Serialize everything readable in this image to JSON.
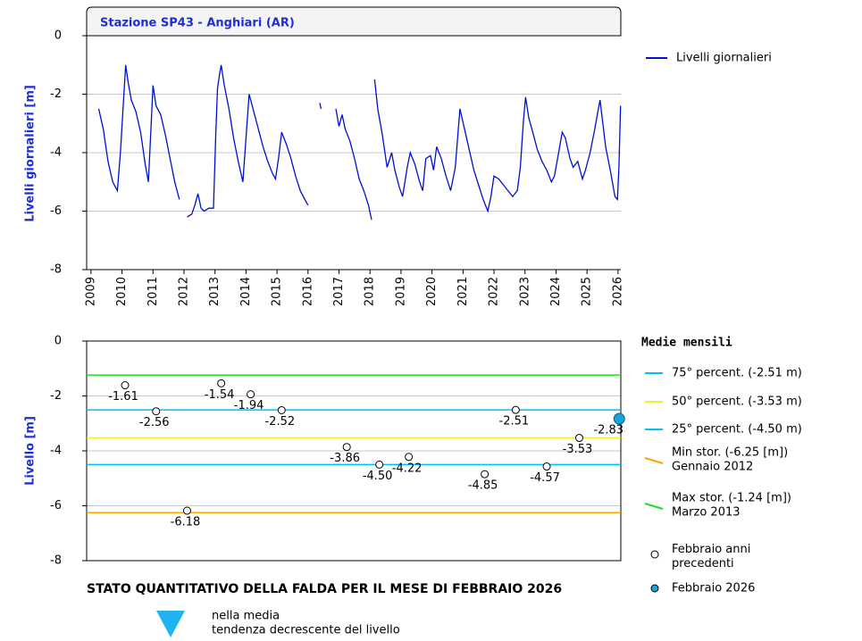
{
  "chart_data": [
    {
      "type": "line",
      "title": "Stazione SP43 - Anghiari (AR)",
      "ylabel": "Livelli giornalieri [m]",
      "xlim": [
        2008.86,
        2026.09
      ],
      "xticks": [
        2009,
        2010,
        2011,
        2012,
        2013,
        2014,
        2015,
        2016,
        2017,
        2018,
        2019,
        2020,
        2021,
        2022,
        2023,
        2024,
        2025,
        2026
      ],
      "ylim": [
        -8,
        0
      ],
      "yticks": [
        0,
        -2,
        -4,
        -6,
        -8
      ],
      "grid": true,
      "series": [
        {
          "name": "Livelli giornalieri",
          "color": "#0010d0",
          "x": [
            2009.25,
            2009.4,
            2009.55,
            2009.7,
            2009.85,
            2009.95,
            2010.05,
            2010.12,
            2010.2,
            2010.3,
            2010.45,
            2010.6,
            2010.75,
            2010.85,
            2010.92,
            2011.0,
            2011.1,
            2011.25,
            2011.4,
            2011.55,
            2011.7,
            2011.85,
            2011.95,
            2012.1,
            2012.25,
            2012.35,
            2012.45,
            2012.55,
            2012.65,
            2012.8,
            2012.95,
            2013.02,
            2013.08,
            2013.15,
            2013.2,
            2013.3,
            2013.45,
            2013.6,
            2013.75,
            2013.9,
            2014.0,
            2014.1,
            2014.25,
            2014.4,
            2014.55,
            2014.7,
            2014.85,
            2014.95,
            2015.05,
            2015.15,
            2015.3,
            2015.45,
            2015.6,
            2015.75,
            2015.9,
            2016.0,
            2016.2,
            2016.38,
            2016.42,
            2016.6,
            2016.9,
            2017.0,
            2017.1,
            2017.2,
            2017.35,
            2017.5,
            2017.65,
            2017.8,
            2017.95,
            2018.05,
            2018.1,
            2018.15,
            2018.25,
            2018.4,
            2018.55,
            2018.7,
            2018.8,
            2018.95,
            2019.05,
            2019.2,
            2019.3,
            2019.45,
            2019.6,
            2019.7,
            2019.8,
            2019.95,
            2020.05,
            2020.15,
            2020.3,
            2020.45,
            2020.6,
            2020.75,
            2020.9,
            2021.05,
            2021.2,
            2021.35,
            2021.5,
            2021.65,
            2021.8,
            2021.9,
            2022.0,
            2022.15,
            2022.3,
            2022.45,
            2022.6,
            2022.75,
            2022.85,
            2022.95,
            2023.02,
            2023.12,
            2023.25,
            2023.4,
            2023.55,
            2023.7,
            2023.85,
            2023.95,
            2024.05,
            2024.2,
            2024.3,
            2024.45,
            2024.55,
            2024.7,
            2024.85,
            2024.95,
            2025.1,
            2025.25,
            2025.35,
            2025.42,
            2025.5,
            2025.6,
            2025.75,
            2025.9,
            2025.98,
            2026.03,
            2026.08
          ],
          "values": [
            -2.5,
            -3.2,
            -4.3,
            -5.0,
            -5.3,
            -4.0,
            -2.2,
            -1.0,
            -1.6,
            -2.2,
            -2.6,
            -3.3,
            -4.4,
            -5.0,
            -3.5,
            -1.7,
            -2.4,
            -2.7,
            -3.4,
            -4.2,
            -5.0,
            -5.6,
            null,
            -6.2,
            -6.1,
            -5.8,
            -5.4,
            -5.9,
            -6.0,
            -5.9,
            -5.9,
            -3.5,
            -1.8,
            -1.3,
            -1.0,
            -1.7,
            -2.5,
            -3.5,
            -4.3,
            -5.0,
            -3.5,
            -2.0,
            -2.6,
            -3.2,
            -3.8,
            -4.3,
            -4.7,
            -4.9,
            -4.2,
            -3.3,
            -3.7,
            -4.2,
            -4.8,
            -5.3,
            -5.6,
            -5.8,
            null,
            -2.3,
            -2.5,
            null,
            -2.5,
            -3.1,
            -2.7,
            -3.2,
            -3.6,
            -4.2,
            -4.9,
            -5.3,
            -5.8,
            -6.3,
            null,
            -1.5,
            -2.5,
            -3.4,
            -4.5,
            -4.0,
            -4.6,
            -5.2,
            -5.5,
            -4.5,
            -4.0,
            -4.4,
            -5.0,
            -5.3,
            -4.2,
            -4.1,
            -4.6,
            -3.8,
            -4.2,
            -4.8,
            -5.3,
            -4.5,
            -2.5,
            -3.2,
            -3.9,
            -4.6,
            -5.1,
            -5.6,
            -6.0,
            -5.5,
            -4.8,
            -4.9,
            -5.1,
            -5.3,
            -5.5,
            -5.3,
            -4.5,
            -2.9,
            -2.1,
            -2.8,
            -3.3,
            -3.9,
            -4.3,
            -4.6,
            -5.0,
            -4.8,
            -4.2,
            -3.3,
            -3.5,
            -4.2,
            -4.5,
            -4.3,
            -4.9,
            -4.6,
            -4.0,
            -3.2,
            -2.6,
            -2.2,
            -2.9,
            -3.8,
            -4.6,
            -5.5,
            -5.6,
            -4.5,
            -2.4
          ]
        }
      ]
    },
    {
      "type": "scatter",
      "ylabel": "Livello [m]",
      "legend_title": "Medie mensili",
      "xlim": [
        2008.86,
        2026.09
      ],
      "ylim": [
        -8,
        0
      ],
      "yticks": [
        0,
        -2,
        -4,
        -6,
        -8
      ],
      "grid": true,
      "reference_lines": [
        {
          "name": "75° percent. (-2.51 m)",
          "value": -2.51,
          "color": "#00bfff"
        },
        {
          "name": "50° percent. (-3.53 m)",
          "value": -3.53,
          "color": "#f0f020"
        },
        {
          "name": "25° percent. (-4.50 m)",
          "value": -4.5,
          "color": "#00bfff"
        },
        {
          "name": "Min stor. (-6.25 [m])",
          "note": "Gennaio 2012",
          "value": -6.25,
          "color": "#ffa500"
        },
        {
          "name": "Max stor. (-1.24 [m])",
          "note": "Marzo 2013",
          "value": -1.24,
          "color": "#22dd22"
        }
      ],
      "series": [
        {
          "name": "Febbraio anni precedenti",
          "color": "#ffffff",
          "label_color": "#000000",
          "x": [
            2010.1,
            2011.1,
            2012.1,
            2013.2,
            2014.15,
            2015.15,
            2017.25,
            2018.3,
            2019.25,
            2021.7,
            2022.7,
            2023.7,
            2024.75
          ],
          "values": [
            -1.61,
            -2.56,
            -6.18,
            -1.54,
            -1.94,
            -2.52,
            -3.86,
            -4.5,
            -4.22,
            -4.85,
            -2.51,
            -4.57,
            -3.53
          ],
          "value_labels": [
            "-1.61",
            "-2.56",
            "-6.18",
            "-1.54",
            "-1.94",
            "-2.52",
            "-3.86",
            "-4.50",
            "-4.22",
            "-4.85",
            "-2.51",
            "-4.57",
            "-3.53"
          ]
        },
        {
          "name": "Febbraio 2026",
          "color": "#1aa3d9",
          "label_color": "#b22222",
          "x": [
            2026.04
          ],
          "values": [
            -2.83
          ],
          "value_labels": [
            "-2.83"
          ]
        }
      ]
    }
  ],
  "status": {
    "title": "STATO QUANTITATIVO DELLA FALDA PER IL MESE DI FEBBRAIO 2026",
    "lines": [
      "nella media",
      "tendenza decrescente del livello"
    ]
  }
}
